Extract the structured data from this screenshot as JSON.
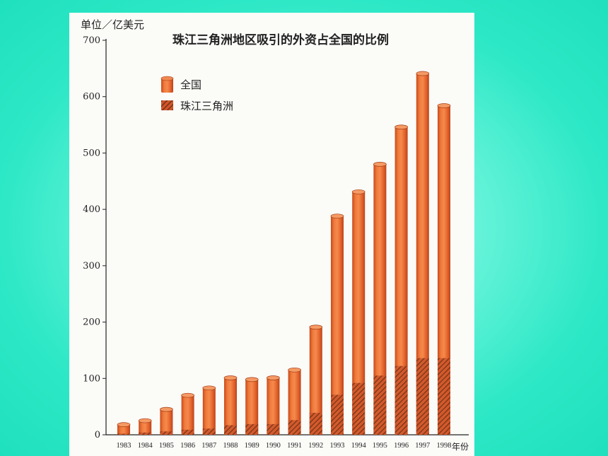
{
  "page": {
    "background_color": "#2ee8c6",
    "panel_color": "#fbfbf8"
  },
  "chart_data": {
    "type": "bar",
    "title": "珠江三角洲地区吸引的外资占全国的比例",
    "ylabel": "单位／亿美元",
    "xlabel": "年份",
    "ylim": [
      0,
      700
    ],
    "yticks": [
      0,
      100,
      200,
      300,
      400,
      500,
      600,
      700
    ],
    "categories": [
      "1983",
      "1984",
      "1985",
      "1986",
      "1987",
      "1988",
      "1989",
      "1990",
      "1991",
      "1992",
      "1993",
      "1994",
      "1995",
      "1996",
      "1997",
      "1998"
    ],
    "series": [
      {
        "name": "全国",
        "color": "#e8642c",
        "values": [
          18,
          25,
          45,
          70,
          83,
          101,
          98,
          101,
          115,
          191,
          388,
          431,
          480,
          546,
          641,
          584
        ]
      },
      {
        "name": "珠江三角洲",
        "color": "#7a3a1c",
        "pattern": "diagonal-hatch",
        "values": [
          2,
          4,
          6,
          9,
          11,
          17,
          19,
          19,
          26,
          39,
          71,
          92,
          105,
          122,
          136,
          136
        ]
      }
    ],
    "legend_position": "top-left",
    "grid": false
  }
}
